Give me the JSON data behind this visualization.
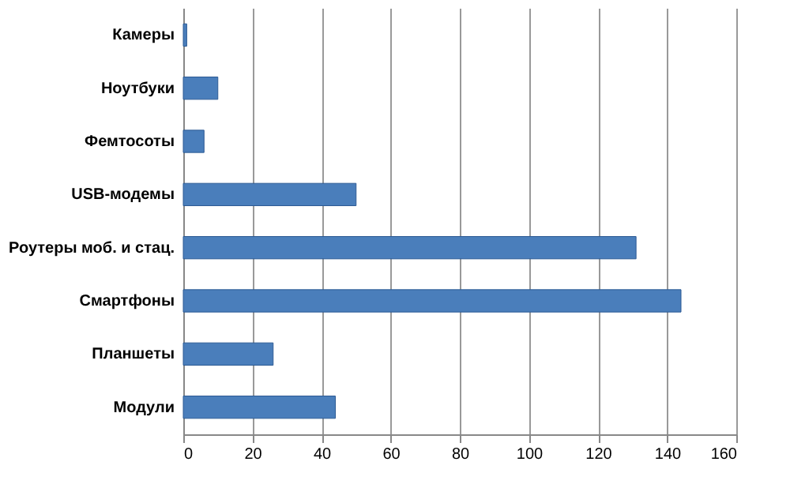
{
  "chart_data": {
    "type": "bar",
    "orientation": "horizontal",
    "categories": [
      "Камеры",
      "Ноутбуки",
      "Фемтосоты",
      "USB-модемы",
      "Роутеры моб. и стац.",
      "Смартфоны",
      "Планшеты",
      "Модули"
    ],
    "values": [
      1,
      10,
      6,
      50,
      131,
      144,
      26,
      44
    ],
    "color": "#4a7ebb",
    "xlim": [
      0,
      160
    ],
    "xticks": [
      0,
      20,
      40,
      60,
      80,
      100,
      120,
      140,
      160
    ],
    "grid": "x"
  }
}
